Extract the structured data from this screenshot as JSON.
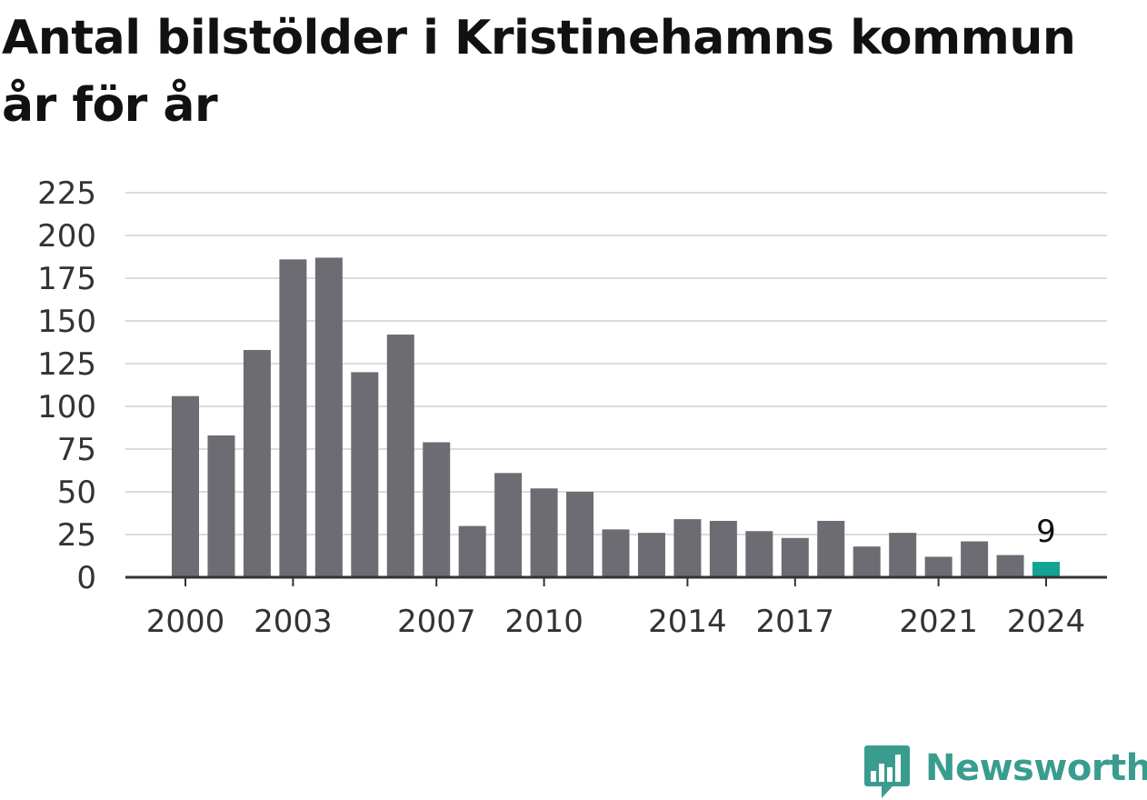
{
  "title": "Antal bilstölder i Kristinehamns kommun år för år",
  "brand": {
    "name": "Newsworthy",
    "logo_icon": "bar-chart-speech-bubble-icon",
    "color": "#3a9c8f"
  },
  "chart_data": {
    "type": "bar",
    "title": "Antal bilstölder i Kristinehamns kommun år för år",
    "xlabel": "",
    "ylabel": "",
    "categories": [
      2000,
      2001,
      2002,
      2003,
      2004,
      2005,
      2006,
      2007,
      2008,
      2009,
      2010,
      2011,
      2012,
      2013,
      2014,
      2015,
      2016,
      2017,
      2018,
      2019,
      2020,
      2021,
      2022,
      2023,
      2024
    ],
    "values": [
      106,
      83,
      133,
      186,
      187,
      120,
      142,
      79,
      30,
      61,
      52,
      50,
      28,
      26,
      34,
      33,
      27,
      23,
      33,
      18,
      26,
      12,
      21,
      13,
      9
    ],
    "x_tick_labels": [
      "2000",
      "2003",
      "2007",
      "2010",
      "2014",
      "2017",
      "2021",
      "2024"
    ],
    "y_ticks": [
      0,
      25,
      50,
      75,
      100,
      125,
      150,
      175,
      200,
      225
    ],
    "ylim": [
      0,
      225
    ],
    "grid": true,
    "bar_color": "#6d6c72",
    "highlight_color": "#12a394",
    "highlight_index": 24,
    "highlight_label": "9"
  }
}
